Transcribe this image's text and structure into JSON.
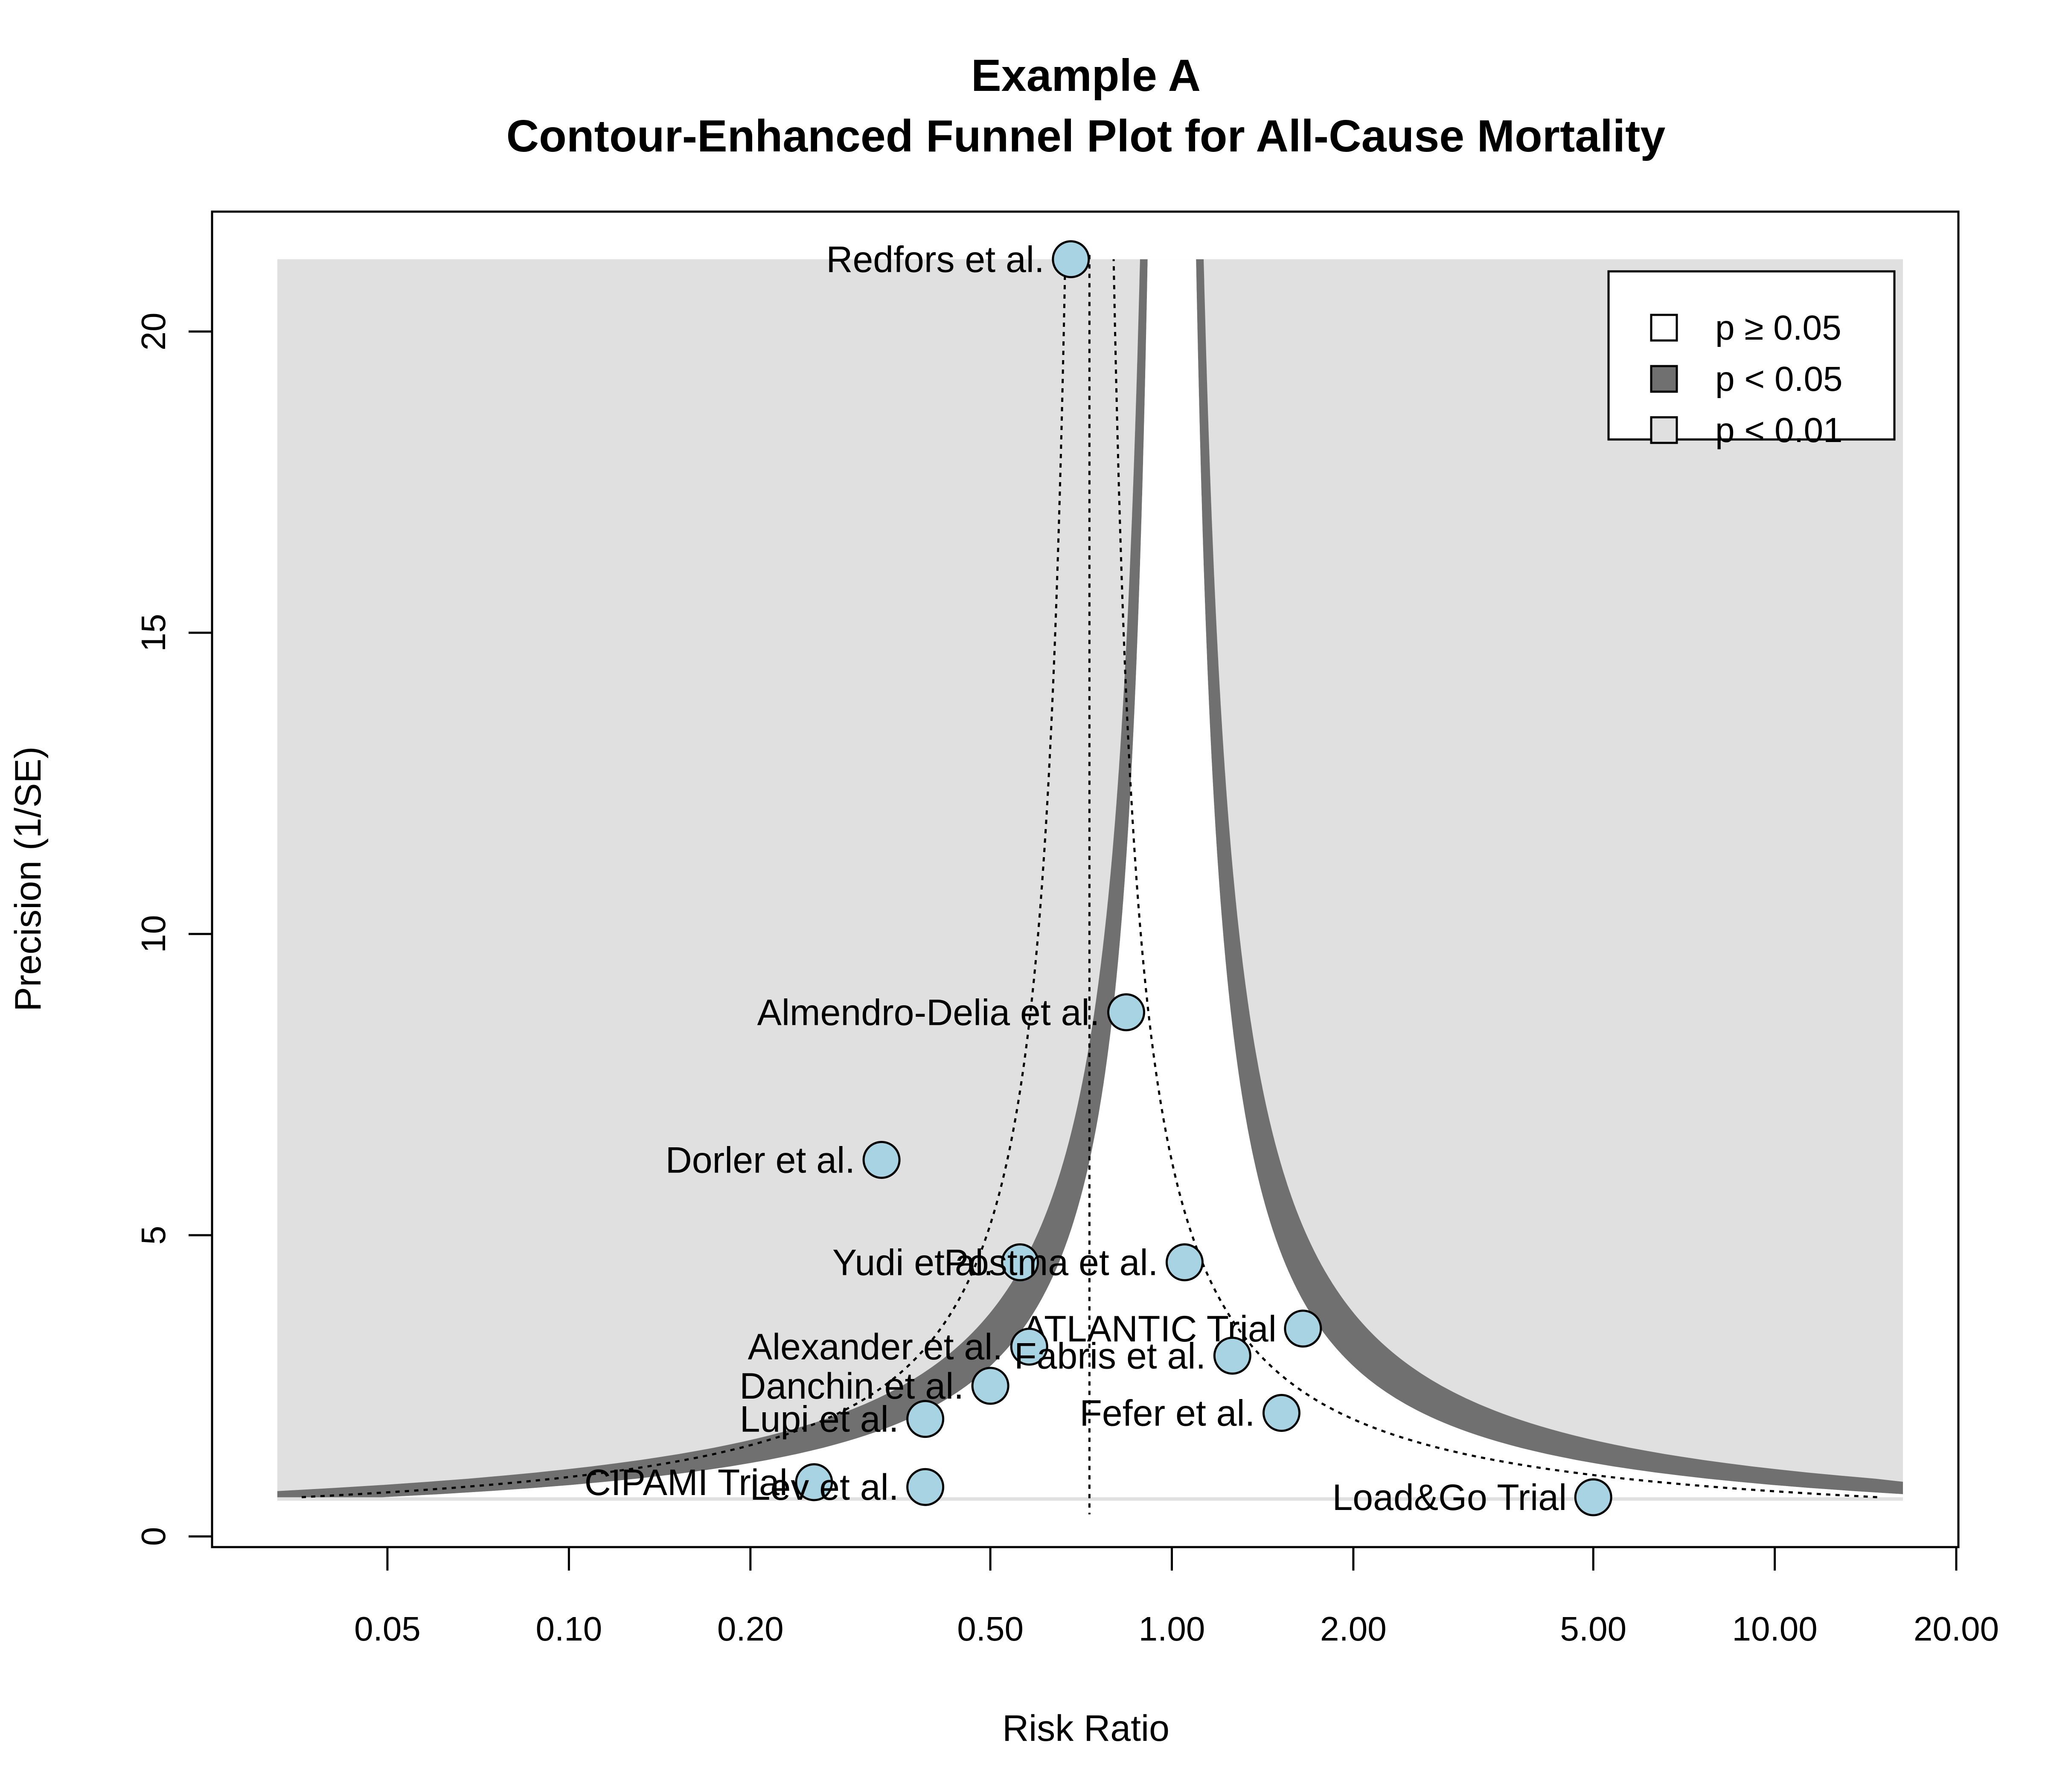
{
  "chart_data": {
    "type": "scatter",
    "title": "Example A",
    "subtitle": "Contour-Enhanced Funnel Plot for All-Cause Mortality",
    "xlabel": "Risk Ratio",
    "ylabel": "Precision (1/SE)",
    "x_scale": "log",
    "xlim": [
      0.025,
      20
    ],
    "ylim": [
      0,
      21.2
    ],
    "x_ticks": [
      0.05,
      0.1,
      0.2,
      0.5,
      1,
      2,
      5,
      10,
      20
    ],
    "x_tick_labels": [
      "0.05",
      "0.10",
      "0.20",
      "0.50",
      "1.00",
      "2.00",
      "5.00",
      "10.00",
      "20.00"
    ],
    "y_ticks": [
      0,
      5,
      10,
      15,
      20
    ],
    "y_tick_labels": [
      "0",
      "5",
      "10",
      "15",
      "20"
    ],
    "contour_p_levels": [
      0.05,
      0.01
    ],
    "pooled_estimate": 0.73,
    "grid": false,
    "legend_position": "top-right",
    "legend": [
      {
        "label": "p ≥ 0.05",
        "color": "#ffffff"
      },
      {
        "label": "p < 0.05",
        "color": "#707070"
      },
      {
        "label": "p < 0.01",
        "color": "#e0e0e0"
      }
    ],
    "colors": {
      "point_fill": "#a7d3e3",
      "region_p05": "#707070",
      "region_p01": "#e0e0e0",
      "region_ns": "#ffffff"
    },
    "points": [
      {
        "label": "Redfors et al.",
        "x": 0.68,
        "y": 21.2
      },
      {
        "label": "Almendro-Delia et al.",
        "x": 0.84,
        "y": 8.7
      },
      {
        "label": "Dorler et al.",
        "x": 0.33,
        "y": 6.25
      },
      {
        "label": "Yudi et al.",
        "x": 0.56,
        "y": 4.55
      },
      {
        "label": "Postma et al.",
        "x": 1.05,
        "y": 4.55
      },
      {
        "label": "ATLANTIC Trial",
        "x": 1.65,
        "y": 3.45
      },
      {
        "label": "Alexander et al.",
        "x": 0.58,
        "y": 3.15
      },
      {
        "label": "Fabris et al.",
        "x": 1.26,
        "y": 3.0
      },
      {
        "label": "Danchin et al.",
        "x": 0.5,
        "y": 2.5
      },
      {
        "label": "Lupi et al.",
        "x": 0.39,
        "y": 1.95
      },
      {
        "label": "Fefer et al.",
        "x": 1.52,
        "y": 2.05
      },
      {
        "label": "CIPAMI Trial",
        "x": 0.255,
        "y": 0.9
      },
      {
        "label": "Lev et al.",
        "x": 0.39,
        "y": 0.82
      },
      {
        "label": "Load&Go Trial",
        "x": 5.0,
        "y": 0.65
      }
    ]
  }
}
